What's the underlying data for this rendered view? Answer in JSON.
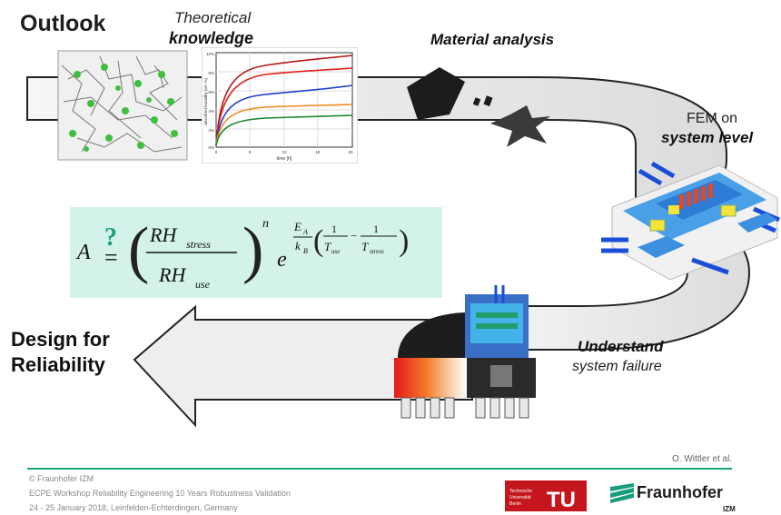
{
  "slide": {
    "title": "Outlook",
    "theoretical_line1": "Theoretical",
    "theoretical_line2": "knowledge",
    "material_analysis": "Material analysis",
    "fem_line1": "FEM on",
    "fem_line2": "system level",
    "design_line1": "Design for",
    "design_line2": "Reliability",
    "understand_line1": "Understand",
    "understand_line2": "system failure",
    "citation": "O. Wittler et al."
  },
  "formula": {
    "lhs": "A",
    "question": "?",
    "rh_stress": "RH",
    "stress_sub": "stress",
    "rh_use": "RH",
    "use_sub": "use",
    "exp_n": "n",
    "e": "e",
    "ea": "E",
    "ea_sub": "A",
    "kb": "k",
    "kb_sub": "B",
    "one": "1",
    "t_use": "T",
    "t_use_sub": "use",
    "t_stress": "T",
    "t_stress_sub": "stress"
  },
  "graph": {
    "ylabel": "absorbed humidity [wt.-%]",
    "xlabel": "time [h]",
    "yticks": [
      "10%",
      "8%",
      "6%",
      "4%",
      "2%",
      "0%"
    ],
    "xticks": [
      "0",
      "5",
      "10",
      "15",
      "20"
    ],
    "colors": [
      "#b11a1a",
      "#e0201a",
      "#1f3fd0",
      "#f08a1c",
      "#1a8a2a"
    ]
  },
  "footer": {
    "copyright": "© Fraunhofer IZM",
    "event": "ECPE Workshop Reliability Engineering 10 Years Robustness Validation",
    "date_place": "24 - 25 January 2018, Leinfelden-Echterdingen, Germany",
    "tu_text1": "Technische",
    "tu_text2": "Universität",
    "tu_text3": "Berlin",
    "tu_mark": "TU",
    "fraunhofer": "Fraunhofer",
    "izm": "IZM"
  },
  "colors": {
    "accent_green": "#1aa37a",
    "formula_bg": "#d3f3ea",
    "question_mark": "#1aa37a",
    "tu_red": "#c4161c",
    "arrow_fill": "#eeeeee",
    "arrow_stroke": "#222222"
  }
}
